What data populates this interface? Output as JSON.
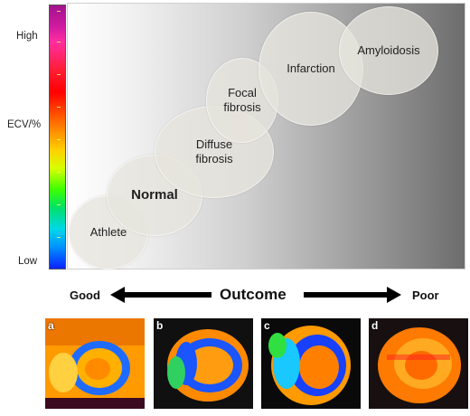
{
  "axis": {
    "high_label": "High",
    "title": "ECV/%",
    "low_label": "Low"
  },
  "bubbles": {
    "athlete": "Athlete",
    "normal": "Normal",
    "diffuse": "Diffuse\nfibrosis",
    "focal": "Focal\nfibrosis",
    "infarction": "Infarction",
    "amyloidosis": "Amyloidosis"
  },
  "outcome": {
    "good": "Good",
    "title": "Outcome",
    "poor": "Poor"
  },
  "images": {
    "a": "a",
    "b": "b",
    "c": "c",
    "d": "d"
  },
  "colors": {
    "colorbar_top": "#a1148c",
    "colorbar_bottom": "#0a22ff",
    "arrow": "#000000"
  }
}
